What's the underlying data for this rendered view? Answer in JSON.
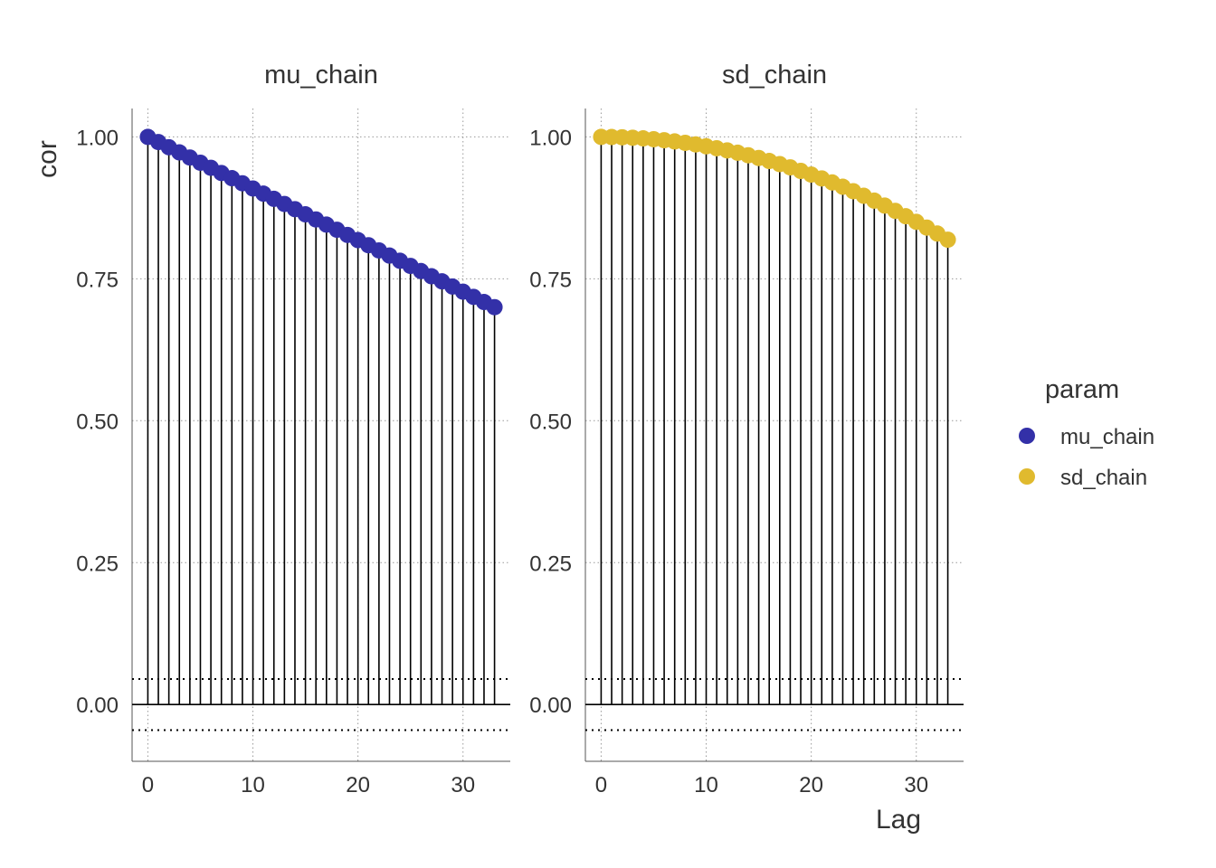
{
  "chart_data": {
    "type": "scatter",
    "facets": [
      {
        "title": "mu_chain",
        "color": "#3330A8",
        "lag": [
          0,
          1,
          2,
          3,
          4,
          5,
          6,
          7,
          8,
          9,
          10,
          11,
          12,
          13,
          14,
          15,
          16,
          17,
          18,
          19,
          20,
          21,
          22,
          23,
          24,
          25,
          26,
          27,
          28,
          29,
          30,
          31,
          32,
          33
        ],
        "cor": [
          1.0,
          0.9909,
          0.9818,
          0.9727,
          0.9636,
          0.9545,
          0.9455,
          0.9364,
          0.9273,
          0.9182,
          0.9091,
          0.9,
          0.8909,
          0.8818,
          0.8727,
          0.8636,
          0.8545,
          0.8455,
          0.8364,
          0.8273,
          0.8182,
          0.8091,
          0.8,
          0.7909,
          0.7818,
          0.7727,
          0.7636,
          0.7545,
          0.7455,
          0.7364,
          0.7273,
          0.7182,
          0.7091,
          0.7
        ]
      },
      {
        "title": "sd_chain",
        "color": "#E0BA2E",
        "lag": [
          0,
          1,
          2,
          3,
          4,
          5,
          6,
          7,
          8,
          9,
          10,
          11,
          12,
          13,
          14,
          15,
          16,
          17,
          18,
          19,
          20,
          21,
          22,
          23,
          24,
          25,
          26,
          27,
          28,
          29,
          30,
          31,
          32,
          33
        ],
        "cor": [
          1.0,
          0.9998,
          0.9993,
          0.9985,
          0.9974,
          0.9959,
          0.9941,
          0.992,
          0.9895,
          0.9867,
          0.9835,
          0.98,
          0.9762,
          0.9721,
          0.9676,
          0.9628,
          0.9576,
          0.9521,
          0.9463,
          0.9401,
          0.9336,
          0.9268,
          0.9197,
          0.9122,
          0.9043,
          0.8962,
          0.8877,
          0.8789,
          0.8697,
          0.8602,
          0.8504,
          0.8402,
          0.8297,
          0.8189
        ]
      }
    ],
    "xlabel": "Lag",
    "ylabel": "cor",
    "x_ticks": [
      0,
      10,
      20,
      30
    ],
    "y_ticks": [
      "0.00",
      "0.25",
      "0.50",
      "0.75",
      "1.00"
    ],
    "y_tick_values": [
      0,
      0.25,
      0.5,
      0.75,
      1.0
    ],
    "xlim": [
      -1.5,
      34.5
    ],
    "ylim": [
      -0.1,
      1.05
    ],
    "confidence_band": 0.045,
    "grid": "dotted",
    "legend": {
      "title": "param",
      "position": "right",
      "entries": [
        {
          "label": "mu_chain",
          "color": "#3330A8"
        },
        {
          "label": "sd_chain",
          "color": "#E0BA2E"
        }
      ]
    }
  }
}
